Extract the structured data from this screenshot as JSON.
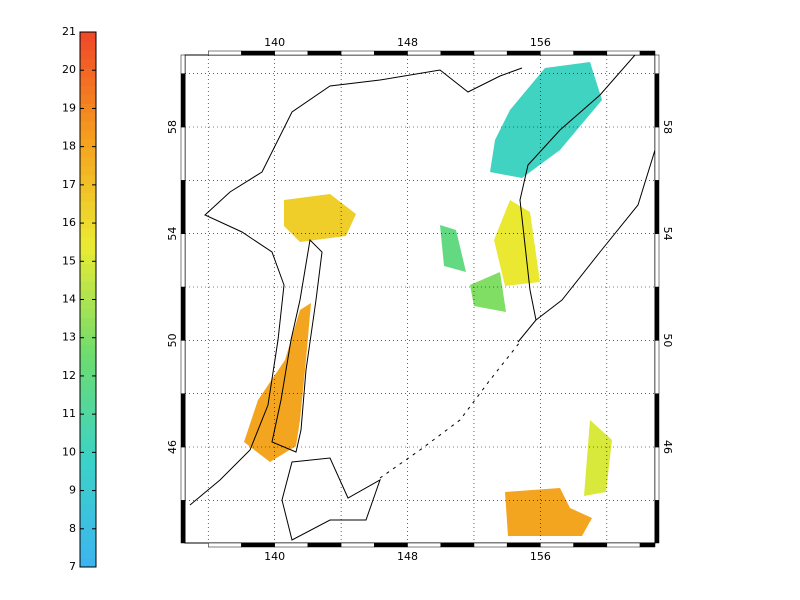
{
  "colorbar": {
    "ticks": [
      7,
      8,
      9,
      10,
      11,
      12,
      13,
      14,
      15,
      16,
      17,
      18,
      19,
      20,
      21
    ]
  },
  "map": {
    "xlim": [
      134.6,
      162.9
    ],
    "ylim": [
      42.4,
      60.7
    ],
    "xticks": [
      140,
      148,
      156
    ],
    "yticks": [
      46,
      50,
      54,
      58
    ],
    "fields": [
      {
        "value": 10
      },
      {
        "value": 15.5
      },
      {
        "value": 18
      },
      {
        "value": 16.5
      },
      {
        "value": 18
      },
      {
        "value": 15
      },
      {
        "value": 13
      },
      {
        "value": 12
      }
    ]
  }
}
